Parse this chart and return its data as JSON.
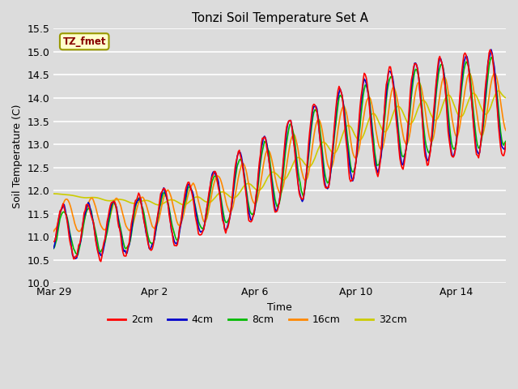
{
  "title": "Tonzi Soil Temperature Set A",
  "xlabel": "Time",
  "ylabel": "Soil Temperature (C)",
  "ylim": [
    10.0,
    15.5
  ],
  "yticks": [
    10.0,
    10.5,
    11.0,
    11.5,
    12.0,
    12.5,
    13.0,
    13.5,
    14.0,
    14.5,
    15.0,
    15.5
  ],
  "background_color": "#dcdcdc",
  "plot_bg_color": "#dcdcdc",
  "legend_label": "TZ_fmet",
  "legend_bg": "#ffffcc",
  "legend_border": "#999900",
  "series_colors": {
    "2cm": "#ff0000",
    "4cm": "#0000cc",
    "8cm": "#00bb00",
    "16cm": "#ff8800",
    "32cm": "#cccc00"
  },
  "line_width": 1.2,
  "x_tick_labels": [
    "Mar 29",
    "Apr 2",
    "Apr 6",
    "Apr 10",
    "Apr 14"
  ],
  "x_tick_positions": [
    0,
    96,
    192,
    288,
    384
  ],
  "n_points": 432
}
